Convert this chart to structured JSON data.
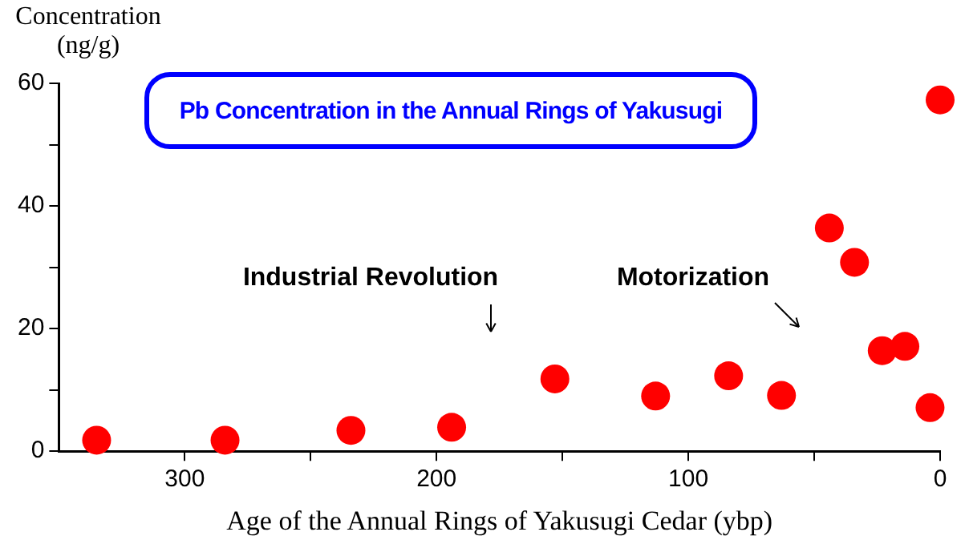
{
  "chart_data": {
    "type": "scatter",
    "title": "Pb Concentration in the Annual Rings of Yakusugi",
    "xlabel": "Age of the Annual Rings of Yakusugi Cedar (ybp)",
    "ylabel": "Concentration (ng/g)",
    "x": [
      335,
      284,
      234,
      194,
      153,
      113,
      84,
      63,
      44,
      34,
      23,
      14,
      4,
      0
    ],
    "series": [
      {
        "color": "#ff0000",
        "values": [
          1.8,
          1.8,
          3.4,
          3.9,
          11.8,
          9.0,
          12.3,
          9.1,
          36.4,
          30.8,
          16.4,
          17.1,
          7.1,
          57.3
        ]
      }
    ],
    "marker": "circle",
    "grid": false,
    "legend": false,
    "xlim": [
      350,
      0
    ],
    "xticks": [
      300,
      {
        "value": 250,
        "label": null
      },
      200,
      {
        "value": 150,
        "label": null
      },
      100,
      {
        "value": 50,
        "label": null
      },
      0
    ],
    "ylim": [
      0,
      60
    ],
    "yticks": [
      0,
      {
        "value": 10,
        "label": null
      },
      20,
      {
        "value": 30,
        "label": null
      },
      40,
      {
        "value": 50,
        "label": null
      },
      60
    ],
    "annotations": [
      "Industrial Revolution",
      "Motorization"
    ]
  }
}
